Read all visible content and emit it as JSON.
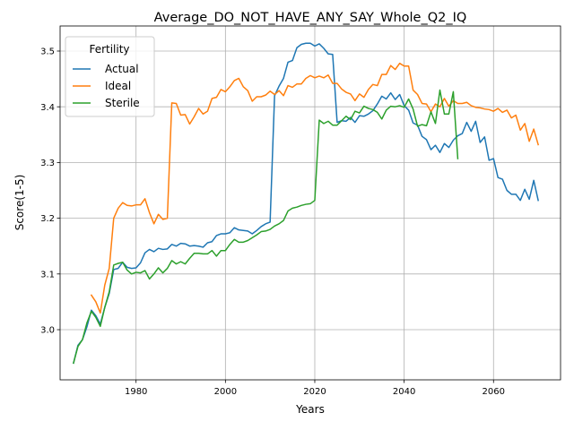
{
  "chart_data": {
    "type": "line",
    "title": "Average_DO_NOT_HAVE_ANY_SAY_Whole_Q2_IQ",
    "xlabel": "Years",
    "ylabel": "Score(1-5)",
    "xlim": [
      1963,
      2075
    ],
    "ylim": [
      2.91,
      3.545
    ],
    "xticks": [
      1980,
      2000,
      2020,
      2040,
      2060
    ],
    "xtick_labels": [
      "1980",
      "2000",
      "2020",
      "2040",
      "2060"
    ],
    "yticks": [
      3.0,
      3.1,
      3.2,
      3.3,
      3.4,
      3.5
    ],
    "ytick_labels": [
      "3.0",
      "3.1",
      "3.2",
      "3.3",
      "3.4",
      "3.5"
    ],
    "grid": true,
    "legend": {
      "title": "Fertility",
      "placement": "upper left"
    },
    "series": [
      {
        "name": "Actual",
        "color": "#1f77b4",
        "points": [
          [
            1966,
            2.94
          ],
          [
            1967,
            2.972
          ],
          [
            1968,
            2.982
          ],
          [
            1969,
            3.005
          ],
          [
            1970,
            3.035
          ],
          [
            1971,
            3.025
          ],
          [
            1972,
            3.01
          ],
          [
            1973,
            3.04
          ],
          [
            1974,
            3.065
          ],
          [
            1975,
            3.108
          ],
          [
            1976,
            3.11
          ],
          [
            1977,
            3.121
          ],
          [
            1978,
            3.112
          ],
          [
            1979,
            3.11
          ],
          [
            1980,
            3.111
          ],
          [
            1981,
            3.12
          ],
          [
            1982,
            3.138
          ],
          [
            1983,
            3.144
          ],
          [
            1984,
            3.14
          ],
          [
            1985,
            3.146
          ],
          [
            1986,
            3.144
          ],
          [
            1987,
            3.145
          ],
          [
            1988,
            3.153
          ],
          [
            1989,
            3.15
          ],
          [
            1990,
            3.155
          ],
          [
            1991,
            3.154
          ],
          [
            1992,
            3.15
          ],
          [
            1993,
            3.151
          ],
          [
            1994,
            3.15
          ],
          [
            1995,
            3.148
          ],
          [
            1996,
            3.156
          ],
          [
            1997,
            3.158
          ],
          [
            1998,
            3.169
          ],
          [
            1999,
            3.172
          ],
          [
            2000,
            3.172
          ],
          [
            2001,
            3.174
          ],
          [
            2002,
            3.183
          ],
          [
            2003,
            3.179
          ],
          [
            2004,
            3.178
          ],
          [
            2005,
            3.177
          ],
          [
            2006,
            3.172
          ],
          [
            2007,
            3.178
          ],
          [
            2008,
            3.185
          ],
          [
            2009,
            3.19
          ],
          [
            2010,
            3.193
          ],
          [
            2011,
            3.42
          ],
          [
            2012,
            3.437
          ],
          [
            2013,
            3.451
          ],
          [
            2014,
            3.48
          ],
          [
            2015,
            3.483
          ],
          [
            2016,
            3.506
          ],
          [
            2017,
            3.512
          ],
          [
            2018,
            3.514
          ],
          [
            2019,
            3.514
          ],
          [
            2020,
            3.509
          ],
          [
            2021,
            3.513
          ],
          [
            2022,
            3.505
          ],
          [
            2023,
            3.495
          ],
          [
            2024,
            3.494
          ],
          [
            2025,
            3.372
          ],
          [
            2026,
            3.375
          ],
          [
            2027,
            3.374
          ],
          [
            2028,
            3.381
          ],
          [
            2029,
            3.372
          ],
          [
            2030,
            3.384
          ],
          [
            2031,
            3.383
          ],
          [
            2032,
            3.387
          ],
          [
            2033,
            3.393
          ],
          [
            2034,
            3.405
          ],
          [
            2035,
            3.419
          ],
          [
            2036,
            3.414
          ],
          [
            2037,
            3.425
          ],
          [
            2038,
            3.413
          ],
          [
            2039,
            3.422
          ],
          [
            2040,
            3.402
          ],
          [
            2041,
            3.394
          ],
          [
            2042,
            3.371
          ],
          [
            2043,
            3.367
          ],
          [
            2044,
            3.347
          ],
          [
            2045,
            3.341
          ],
          [
            2046,
            3.323
          ],
          [
            2047,
            3.331
          ],
          [
            2048,
            3.318
          ],
          [
            2049,
            3.334
          ],
          [
            2050,
            3.327
          ],
          [
            2051,
            3.34
          ],
          [
            2052,
            3.348
          ],
          [
            2053,
            3.352
          ],
          [
            2054,
            3.372
          ],
          [
            2055,
            3.356
          ],
          [
            2056,
            3.374
          ],
          [
            2057,
            3.336
          ],
          [
            2058,
            3.346
          ],
          [
            2059,
            3.304
          ],
          [
            2060,
            3.307
          ],
          [
            2061,
            3.273
          ],
          [
            2062,
            3.27
          ],
          [
            2063,
            3.25
          ],
          [
            2064,
            3.243
          ],
          [
            2065,
            3.243
          ],
          [
            2066,
            3.232
          ],
          [
            2067,
            3.252
          ],
          [
            2068,
            3.234
          ],
          [
            2069,
            3.268
          ],
          [
            2070,
            3.232
          ]
        ]
      },
      {
        "name": "Ideal",
        "color": "#ff7f0e",
        "points": [
          [
            1970,
            3.062
          ],
          [
            1971,
            3.05
          ],
          [
            1972,
            3.03
          ],
          [
            1973,
            3.08
          ],
          [
            1974,
            3.11
          ],
          [
            1975,
            3.2
          ],
          [
            1976,
            3.218
          ],
          [
            1977,
            3.228
          ],
          [
            1978,
            3.223
          ],
          [
            1979,
            3.222
          ],
          [
            1980,
            3.224
          ],
          [
            1981,
            3.224
          ],
          [
            1982,
            3.235
          ],
          [
            1983,
            3.21
          ],
          [
            1984,
            3.19
          ],
          [
            1985,
            3.207
          ],
          [
            1986,
            3.198
          ],
          [
            1987,
            3.2
          ],
          [
            1988,
            3.407
          ],
          [
            1989,
            3.406
          ],
          [
            1990,
            3.385
          ],
          [
            1991,
            3.386
          ],
          [
            1992,
            3.369
          ],
          [
            1993,
            3.382
          ],
          [
            1994,
            3.397
          ],
          [
            1995,
            3.387
          ],
          [
            1996,
            3.392
          ],
          [
            1997,
            3.415
          ],
          [
            1998,
            3.417
          ],
          [
            1999,
            3.431
          ],
          [
            2000,
            3.427
          ],
          [
            2001,
            3.436
          ],
          [
            2002,
            3.447
          ],
          [
            2003,
            3.451
          ],
          [
            2004,
            3.436
          ],
          [
            2005,
            3.429
          ],
          [
            2006,
            3.41
          ],
          [
            2007,
            3.418
          ],
          [
            2008,
            3.418
          ],
          [
            2009,
            3.421
          ],
          [
            2010,
            3.428
          ],
          [
            2011,
            3.422
          ],
          [
            2012,
            3.429
          ],
          [
            2013,
            3.42
          ],
          [
            2014,
            3.438
          ],
          [
            2015,
            3.435
          ],
          [
            2016,
            3.441
          ],
          [
            2017,
            3.441
          ],
          [
            2018,
            3.451
          ],
          [
            2019,
            3.456
          ],
          [
            2020,
            3.452
          ],
          [
            2021,
            3.455
          ],
          [
            2022,
            3.452
          ],
          [
            2023,
            3.457
          ],
          [
            2024,
            3.442
          ],
          [
            2025,
            3.442
          ],
          [
            2026,
            3.432
          ],
          [
            2027,
            3.426
          ],
          [
            2028,
            3.423
          ],
          [
            2029,
            3.411
          ],
          [
            2030,
            3.423
          ],
          [
            2031,
            3.417
          ],
          [
            2032,
            3.431
          ],
          [
            2033,
            3.44
          ],
          [
            2034,
            3.438
          ],
          [
            2035,
            3.458
          ],
          [
            2036,
            3.458
          ],
          [
            2037,
            3.474
          ],
          [
            2038,
            3.467
          ],
          [
            2039,
            3.478
          ],
          [
            2040,
            3.473
          ],
          [
            2041,
            3.473
          ],
          [
            2042,
            3.43
          ],
          [
            2043,
            3.422
          ],
          [
            2044,
            3.406
          ],
          [
            2045,
            3.405
          ],
          [
            2046,
            3.391
          ],
          [
            2047,
            3.405
          ],
          [
            2048,
            3.4
          ],
          [
            2049,
            3.415
          ],
          [
            2050,
            3.401
          ],
          [
            2051,
            3.411
          ],
          [
            2052,
            3.406
          ],
          [
            2053,
            3.406
          ],
          [
            2054,
            3.408
          ],
          [
            2055,
            3.402
          ],
          [
            2056,
            3.399
          ],
          [
            2057,
            3.398
          ],
          [
            2058,
            3.396
          ],
          [
            2059,
            3.395
          ],
          [
            2060,
            3.392
          ],
          [
            2061,
            3.397
          ],
          [
            2062,
            3.39
          ],
          [
            2063,
            3.394
          ],
          [
            2064,
            3.38
          ],
          [
            2065,
            3.385
          ],
          [
            2066,
            3.358
          ],
          [
            2067,
            3.37
          ],
          [
            2068,
            3.338
          ],
          [
            2069,
            3.36
          ],
          [
            2070,
            3.332
          ]
        ]
      },
      {
        "name": "Sterile",
        "color": "#2ca02c",
        "points": [
          [
            1966,
            2.94
          ],
          [
            1967,
            2.97
          ],
          [
            1968,
            2.982
          ],
          [
            1969,
            3.012
          ],
          [
            1970,
            3.033
          ],
          [
            1971,
            3.022
          ],
          [
            1972,
            3.006
          ],
          [
            1973,
            3.04
          ],
          [
            1974,
            3.068
          ],
          [
            1975,
            3.116
          ],
          [
            1976,
            3.119
          ],
          [
            1977,
            3.121
          ],
          [
            1978,
            3.107
          ],
          [
            1979,
            3.1
          ],
          [
            1980,
            3.103
          ],
          [
            1981,
            3.102
          ],
          [
            1982,
            3.106
          ],
          [
            1983,
            3.091
          ],
          [
            1984,
            3.1
          ],
          [
            1985,
            3.111
          ],
          [
            1986,
            3.102
          ],
          [
            1987,
            3.11
          ],
          [
            1988,
            3.124
          ],
          [
            1989,
            3.118
          ],
          [
            1990,
            3.122
          ],
          [
            1991,
            3.118
          ],
          [
            1992,
            3.128
          ],
          [
            1993,
            3.137
          ],
          [
            1994,
            3.137
          ],
          [
            1995,
            3.136
          ],
          [
            1996,
            3.136
          ],
          [
            1997,
            3.142
          ],
          [
            1998,
            3.132
          ],
          [
            1999,
            3.142
          ],
          [
            2000,
            3.142
          ],
          [
            2001,
            3.153
          ],
          [
            2002,
            3.162
          ],
          [
            2003,
            3.157
          ],
          [
            2004,
            3.157
          ],
          [
            2005,
            3.16
          ],
          [
            2006,
            3.165
          ],
          [
            2007,
            3.17
          ],
          [
            2008,
            3.176
          ],
          [
            2009,
            3.177
          ],
          [
            2010,
            3.18
          ],
          [
            2011,
            3.186
          ],
          [
            2012,
            3.19
          ],
          [
            2013,
            3.196
          ],
          [
            2014,
            3.213
          ],
          [
            2015,
            3.218
          ],
          [
            2016,
            3.22
          ],
          [
            2017,
            3.223
          ],
          [
            2018,
            3.225
          ],
          [
            2019,
            3.226
          ],
          [
            2020,
            3.232
          ],
          [
            2021,
            3.376
          ],
          [
            2022,
            3.37
          ],
          [
            2023,
            3.374
          ],
          [
            2024,
            3.367
          ],
          [
            2025,
            3.367
          ],
          [
            2026,
            3.375
          ],
          [
            2027,
            3.383
          ],
          [
            2028,
            3.377
          ],
          [
            2029,
            3.392
          ],
          [
            2030,
            3.389
          ],
          [
            2031,
            3.401
          ],
          [
            2032,
            3.397
          ],
          [
            2033,
            3.395
          ],
          [
            2034,
            3.39
          ],
          [
            2035,
            3.378
          ],
          [
            2036,
            3.394
          ],
          [
            2037,
            3.401
          ],
          [
            2038,
            3.4
          ],
          [
            2039,
            3.402
          ],
          [
            2040,
            3.399
          ],
          [
            2041,
            3.414
          ],
          [
            2042,
            3.396
          ],
          [
            2043,
            3.365
          ],
          [
            2044,
            3.368
          ],
          [
            2045,
            3.366
          ],
          [
            2046,
            3.391
          ],
          [
            2047,
            3.37
          ],
          [
            2048,
            3.43
          ],
          [
            2049,
            3.387
          ],
          [
            2050,
            3.387
          ],
          [
            2051,
            3.427
          ],
          [
            2052,
            3.307
          ]
        ]
      }
    ]
  }
}
